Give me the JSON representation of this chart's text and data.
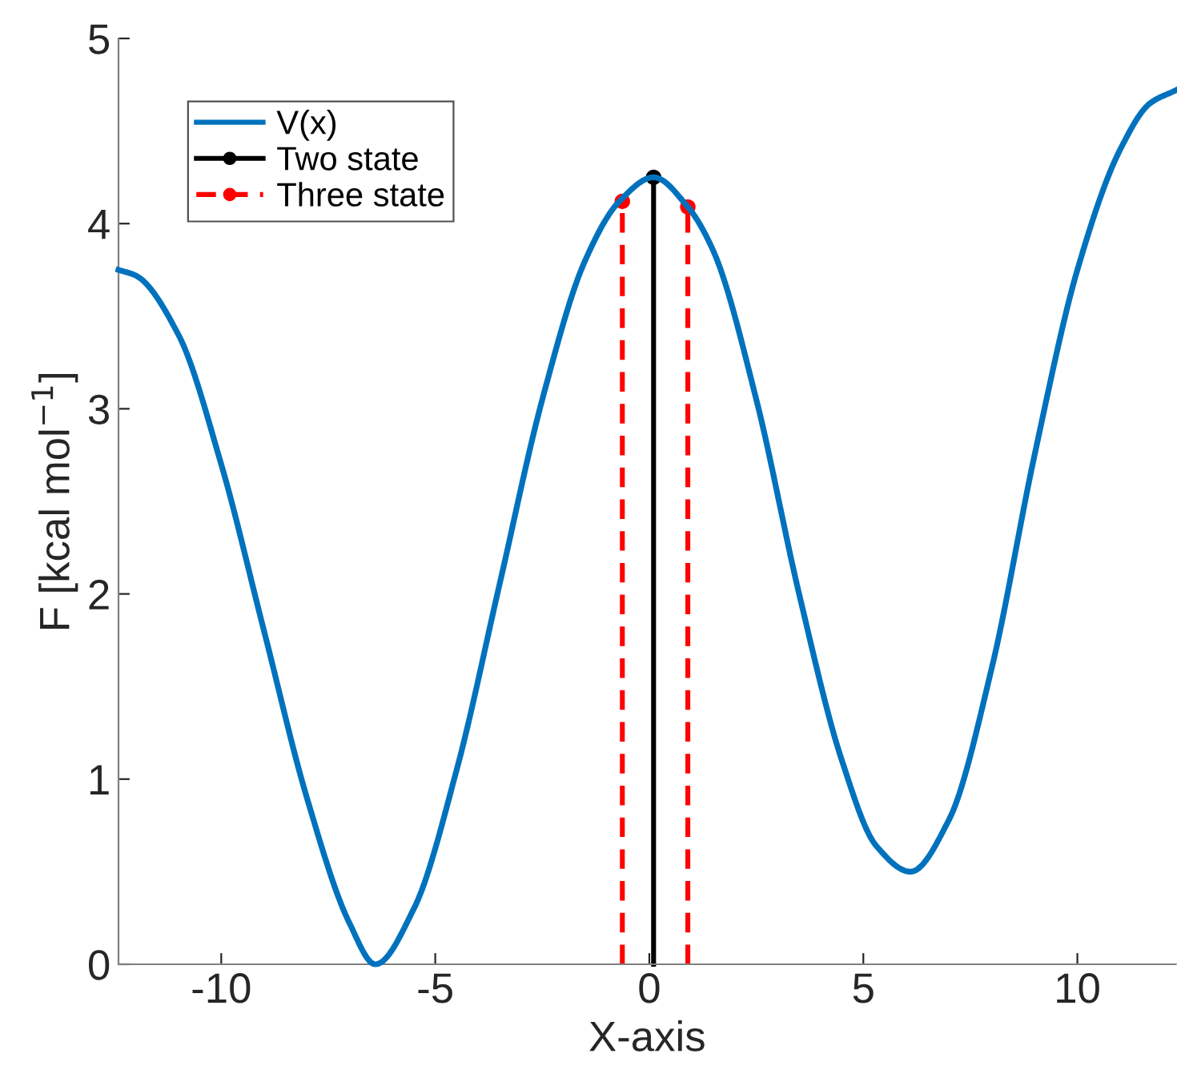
{
  "chart_data": {
    "type": "line",
    "xlabel": "X-axis",
    "ylabel": "F [kcal mol$^{−1}$]",
    "xlim": [
      -12.4,
      12.3
    ],
    "ylim": [
      0,
      5
    ],
    "xticks": [
      -10,
      -5,
      0,
      5,
      10
    ],
    "yticks": [
      0,
      1,
      2,
      3,
      4,
      5
    ],
    "grid": false,
    "legend": "top left",
    "series": [
      {
        "name": "V(x)",
        "color": "#0072bd",
        "marker": "none",
        "line_style": "solid",
        "x": [
          -12.4,
          -12,
          -11,
          -10,
          -9,
          -8,
          -7,
          -6.4,
          -5.5,
          -4.5,
          -3.5,
          -2.5,
          -1.5,
          -0.7,
          0.1,
          0.9,
          1.5,
          2.5,
          3.5,
          4.5,
          5.3,
          6.1,
          7,
          8,
          9,
          10,
          11,
          11.7,
          12.3
        ],
        "values": [
          3.75,
          3.72,
          3.4,
          2.7,
          1.8,
          0.9,
          0.22,
          0.0,
          0.3,
          1.05,
          2.05,
          3.05,
          3.8,
          4.12,
          4.25,
          4.09,
          3.85,
          3.05,
          2.0,
          1.1,
          0.64,
          0.5,
          0.78,
          1.6,
          2.75,
          3.75,
          4.4,
          4.65,
          4.72
        ]
      },
      {
        "name": "Two state",
        "color": "#000000",
        "marker": "circle",
        "line_style": "solid",
        "x": [
          0.1,
          0.1
        ],
        "values": [
          0,
          4.25
        ]
      },
      {
        "name": "Three state",
        "color": "#ff0000",
        "marker": "circle",
        "line_style": "dashed",
        "x": [
          -0.63,
          -0.63,
          null,
          0.9,
          0.9
        ],
        "values": [
          0,
          4.12,
          null,
          0,
          4.09
        ]
      }
    ]
  }
}
